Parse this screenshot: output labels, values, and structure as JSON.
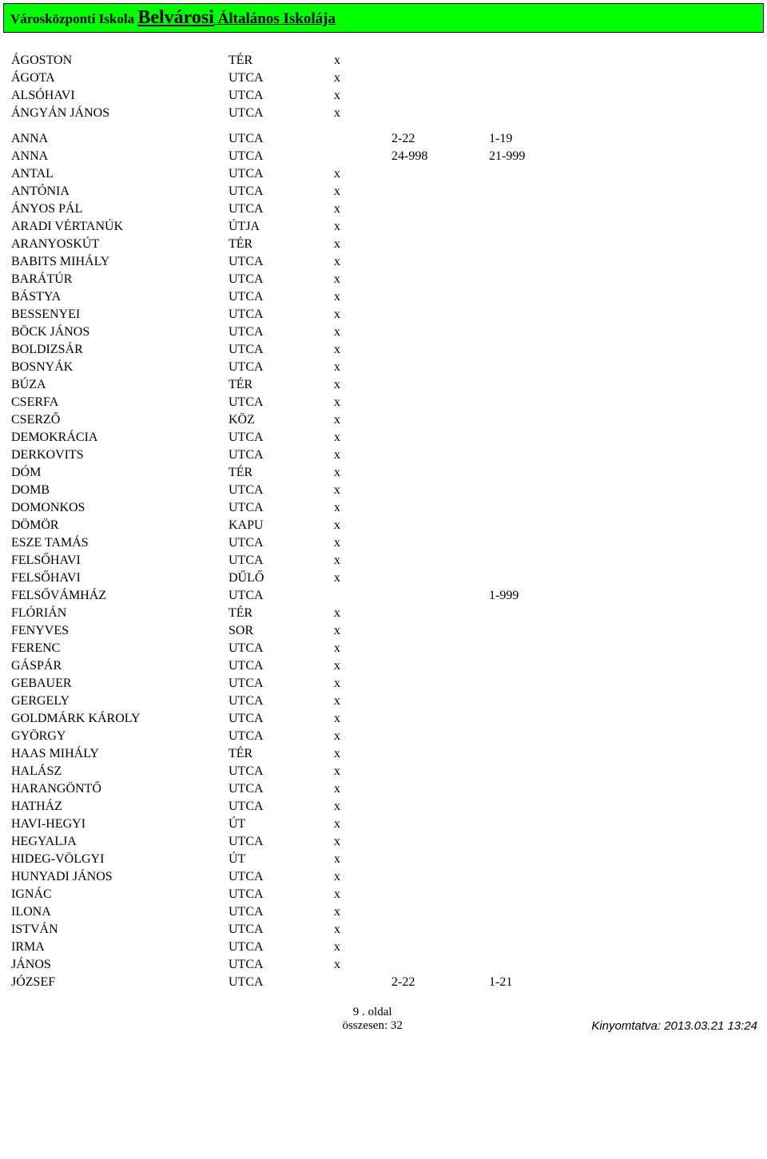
{
  "header": {
    "prefix": "Városközponti Iskola ",
    "main": "Belvárosi",
    "suffix": " Általános Iskolája"
  },
  "rows": [
    {
      "name": "ÁGOSTON",
      "type": "TÉR",
      "x": "x",
      "n1": "",
      "n2": ""
    },
    {
      "name": "ÁGOTA",
      "type": "UTCA",
      "x": "x",
      "n1": "",
      "n2": ""
    },
    {
      "name": "ALSÓHAVI",
      "type": "UTCA",
      "x": "x",
      "n1": "",
      "n2": ""
    },
    {
      "name": "ÁNGYÁN JÁNOS",
      "type": "UTCA",
      "x": "x",
      "n1": "",
      "n2": ""
    },
    {
      "spacer": true
    },
    {
      "name": "ANNA",
      "type": "UTCA",
      "x": "",
      "n1": "2-22",
      "n2": "1-19"
    },
    {
      "name": "ANNA",
      "type": "UTCA",
      "x": "",
      "n1": "24-998",
      "n2": "21-999"
    },
    {
      "name": "ANTAL",
      "type": "UTCA",
      "x": "x",
      "n1": "",
      "n2": ""
    },
    {
      "name": "ANTÓNIA",
      "type": "UTCA",
      "x": "x",
      "n1": "",
      "n2": ""
    },
    {
      "name": "ÁNYOS PÁL",
      "type": "UTCA",
      "x": "x",
      "n1": "",
      "n2": ""
    },
    {
      "name": "ARADI VÉRTANÚK",
      "type": "ÚTJA",
      "x": "x",
      "n1": "",
      "n2": ""
    },
    {
      "name": "ARANYOSKÚT",
      "type": "TÉR",
      "x": "x",
      "n1": "",
      "n2": ""
    },
    {
      "name": "BABITS MIHÁLY",
      "type": "UTCA",
      "x": "x",
      "n1": "",
      "n2": ""
    },
    {
      "name": "BARÁTÚR",
      "type": "UTCA",
      "x": "x",
      "n1": "",
      "n2": ""
    },
    {
      "name": "BÁSTYA",
      "type": "UTCA",
      "x": "x",
      "n1": "",
      "n2": ""
    },
    {
      "name": "BESSENYEI",
      "type": "UTCA",
      "x": "x",
      "n1": "",
      "n2": ""
    },
    {
      "name": "BÖCK JÁNOS",
      "type": "UTCA",
      "x": "x",
      "n1": "",
      "n2": ""
    },
    {
      "name": "BOLDIZSÁR",
      "type": "UTCA",
      "x": "x",
      "n1": "",
      "n2": ""
    },
    {
      "name": "BOSNYÁK",
      "type": "UTCA",
      "x": "x",
      "n1": "",
      "n2": ""
    },
    {
      "name": "BÚZA",
      "type": "TÉR",
      "x": "x",
      "n1": "",
      "n2": ""
    },
    {
      "name": "CSERFA",
      "type": "UTCA",
      "x": "x",
      "n1": "",
      "n2": ""
    },
    {
      "name": "CSERZŐ",
      "type": "KÖZ",
      "x": "x",
      "n1": "",
      "n2": ""
    },
    {
      "name": "DEMOKRÁCIA",
      "type": "UTCA",
      "x": "x",
      "n1": "",
      "n2": ""
    },
    {
      "name": "DERKOVITS",
      "type": "UTCA",
      "x": "x",
      "n1": "",
      "n2": ""
    },
    {
      "name": "DÓM",
      "type": "TÉR",
      "x": "x",
      "n1": "",
      "n2": ""
    },
    {
      "name": "DOMB",
      "type": "UTCA",
      "x": "x",
      "n1": "",
      "n2": ""
    },
    {
      "name": "DOMONKOS",
      "type": "UTCA",
      "x": "x",
      "n1": "",
      "n2": ""
    },
    {
      "name": "DÖMÖR",
      "type": "KAPU",
      "x": "x",
      "n1": "",
      "n2": ""
    },
    {
      "name": "ESZE TAMÁS",
      "type": "UTCA",
      "x": "x",
      "n1": "",
      "n2": ""
    },
    {
      "name": "FELSŐHAVI",
      "type": "UTCA",
      "x": "x",
      "n1": "",
      "n2": ""
    },
    {
      "name": "FELSŐHAVI",
      "type": "DŰLŐ",
      "x": "x",
      "n1": "",
      "n2": ""
    },
    {
      "name": "FELSŐVÁMHÁZ",
      "type": "UTCA",
      "x": "",
      "n1": "",
      "n2": "1-999"
    },
    {
      "name": "FLÓRIÁN",
      "type": "TÉR",
      "x": "x",
      "n1": "",
      "n2": ""
    },
    {
      "name": "FENYVES",
      "type": "SOR",
      "x": "x",
      "n1": "",
      "n2": ""
    },
    {
      "name": "FERENC",
      "type": "UTCA",
      "x": "x",
      "n1": "",
      "n2": ""
    },
    {
      "name": "GÁSPÁR",
      "type": "UTCA",
      "x": "x",
      "n1": "",
      "n2": ""
    },
    {
      "name": "GEBAUER",
      "type": "UTCA",
      "x": "x",
      "n1": "",
      "n2": ""
    },
    {
      "name": "GERGELY",
      "type": "UTCA",
      "x": "x",
      "n1": "",
      "n2": ""
    },
    {
      "name": "GOLDMÁRK KÁROLY",
      "type": "UTCA",
      "x": "x",
      "n1": "",
      "n2": ""
    },
    {
      "name": "GYÖRGY",
      "type": "UTCA",
      "x": "x",
      "n1": "",
      "n2": ""
    },
    {
      "name": "HAAS MIHÁLY",
      "type": "TÉR",
      "x": "x",
      "n1": "",
      "n2": ""
    },
    {
      "name": "HALÁSZ",
      "type": "UTCA",
      "x": "x",
      "n1": "",
      "n2": ""
    },
    {
      "name": "HARANGÖNTŐ",
      "type": "UTCA",
      "x": "x",
      "n1": "",
      "n2": ""
    },
    {
      "name": "HATHÁZ",
      "type": "UTCA",
      "x": "x",
      "n1": "",
      "n2": ""
    },
    {
      "name": "HAVI-HEGYI",
      "type": "ÚT",
      "x": "x",
      "n1": "",
      "n2": ""
    },
    {
      "name": "HEGYALJA",
      "type": "UTCA",
      "x": "x",
      "n1": "",
      "n2": ""
    },
    {
      "name": "HIDEG-VÖLGYI",
      "type": "ÚT",
      "x": "x",
      "n1": "",
      "n2": ""
    },
    {
      "name": "HUNYADI JÁNOS",
      "type": "UTCA",
      "x": "x",
      "n1": "",
      "n2": ""
    },
    {
      "name": "IGNÁC",
      "type": "UTCA",
      "x": "x",
      "n1": "",
      "n2": ""
    },
    {
      "name": "ILONA",
      "type": "UTCA",
      "x": "x",
      "n1": "",
      "n2": ""
    },
    {
      "name": "ISTVÁN",
      "type": "UTCA",
      "x": "x",
      "n1": "",
      "n2": ""
    },
    {
      "name": "IRMA",
      "type": "UTCA",
      "x": "x",
      "n1": "",
      "n2": ""
    },
    {
      "name": "JÁNOS",
      "type": "UTCA",
      "x": "x",
      "n1": "",
      "n2": ""
    },
    {
      "name": "JÓZSEF",
      "type": "UTCA",
      "x": "",
      "n1": "2-22",
      "n2": "1-21"
    }
  ],
  "footer": {
    "page_line": "9 . oldal",
    "total_line": "összesen: 32",
    "print_line": "Kinyomtatva: 2013.03.21  13:24"
  },
  "colors": {
    "header_bg": "#00ff00",
    "border": "#000000",
    "page_bg": "#ffffff",
    "text": "#000000"
  }
}
